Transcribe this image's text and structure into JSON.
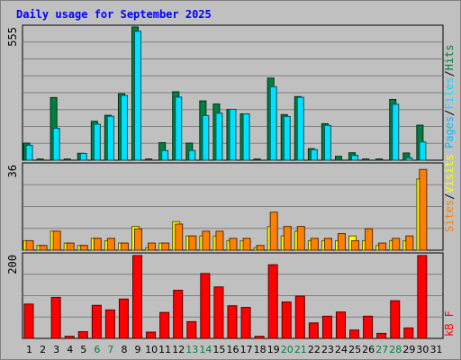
{
  "title": "Daily usage for September 2025",
  "colors": {
    "hits": "#008040",
    "files": "#00e0ff",
    "visits": "#ffff00",
    "sites": "#ff8000",
    "kbytes": "#ff0000",
    "title": "#0000ff",
    "weekend_day": "#008040",
    "weekday": "#000000"
  },
  "legends": {
    "hits_files_pages": [
      "Pages",
      "/",
      "Files",
      "/",
      "Hits"
    ],
    "sites_visits": [
      "Sites",
      "/",
      "Visits"
    ],
    "kbytes": "kB F"
  },
  "chart_data": [
    {
      "type": "bar",
      "panel": "hits-files-pages",
      "ymax_label": "555",
      "ylim": [
        0,
        555
      ],
      "categories": [
        "1",
        "2",
        "3",
        "4",
        "5",
        "6",
        "7",
        "8",
        "9",
        "10",
        "11",
        "12",
        "13",
        "14",
        "15",
        "16",
        "17",
        "18",
        "19",
        "20",
        "21",
        "22",
        "23",
        "24",
        "25",
        "26",
        "27",
        "28",
        "29",
        "30",
        "31"
      ],
      "weekend_days": [
        "6",
        "7",
        "13",
        "14",
        "20",
        "21",
        "27",
        "28"
      ],
      "series": [
        {
          "key": "hits",
          "values": [
            71,
            5,
            261,
            5,
            29,
            162,
            187,
            277,
            555,
            5,
            73,
            285,
            71,
            247,
            234,
            211,
            193,
            5,
            342,
            190,
            265,
            48,
            152,
            16,
            31,
            5,
            5,
            253,
            30,
            146,
            0
          ]
        },
        {
          "key": "files",
          "values": [
            62,
            0,
            133,
            0,
            28,
            150,
            183,
            270,
            537,
            0,
            40,
            263,
            40,
            186,
            196,
            212,
            193,
            0,
            306,
            182,
            262,
            44,
            145,
            0,
            20,
            0,
            0,
            233,
            10,
            76,
            0
          ]
        },
        {
          "key": "pages",
          "values": [
            0,
            0,
            0,
            0,
            0,
            0,
            0,
            0,
            0,
            0,
            0,
            0,
            0,
            0,
            0,
            0,
            0,
            0,
            0,
            0,
            0,
            0,
            0,
            0,
            0,
            0,
            0,
            0,
            0,
            0,
            0
          ]
        }
      ]
    },
    {
      "type": "bar",
      "panel": "sites-visits",
      "ymax_label": "36",
      "ylim": [
        0,
        36
      ],
      "categories": [
        "1",
        "2",
        "3",
        "4",
        "5",
        "6",
        "7",
        "8",
        "9",
        "10",
        "11",
        "12",
        "13",
        "14",
        "15",
        "16",
        "17",
        "18",
        "19",
        "20",
        "21",
        "22",
        "23",
        "24",
        "25",
        "26",
        "27",
        "28",
        "29",
        "30",
        "31"
      ],
      "series": [
        {
          "key": "visits",
          "values": [
            4,
            2,
            8,
            3,
            2,
            5,
            4,
            3,
            10,
            1,
            3,
            12,
            6,
            6,
            6,
            4,
            4,
            1,
            10,
            6,
            8,
            4,
            4,
            4,
            6,
            4,
            2,
            4,
            4,
            30,
            0
          ]
        },
        {
          "key": "sites",
          "values": [
            4,
            2,
            8,
            3,
            2,
            5,
            5,
            3,
            9,
            3,
            3,
            11,
            6,
            8,
            8,
            5,
            5,
            2,
            16,
            10,
            10,
            5,
            5,
            7,
            4,
            9,
            3,
            5,
            6,
            34,
            0
          ]
        }
      ]
    },
    {
      "type": "bar",
      "panel": "kbytes",
      "ymax_label": "200",
      "ylim": [
        0,
        200
      ],
      "categories": [
        "1",
        "2",
        "3",
        "4",
        "5",
        "6",
        "7",
        "8",
        "9",
        "10",
        "11",
        "12",
        "13",
        "14",
        "15",
        "16",
        "17",
        "18",
        "19",
        "20",
        "21",
        "22",
        "23",
        "24",
        "25",
        "26",
        "27",
        "28",
        "29",
        "30",
        "31"
      ],
      "series": [
        {
          "key": "kbytes",
          "values": [
            82,
            0,
            98,
            5,
            16,
            79,
            68,
            94,
            198,
            15,
            62,
            115,
            40,
            155,
            123,
            78,
            74,
            5,
            176,
            87,
            101,
            37,
            53,
            63,
            20,
            53,
            12,
            90,
            25,
            198,
            0
          ]
        }
      ]
    }
  ]
}
